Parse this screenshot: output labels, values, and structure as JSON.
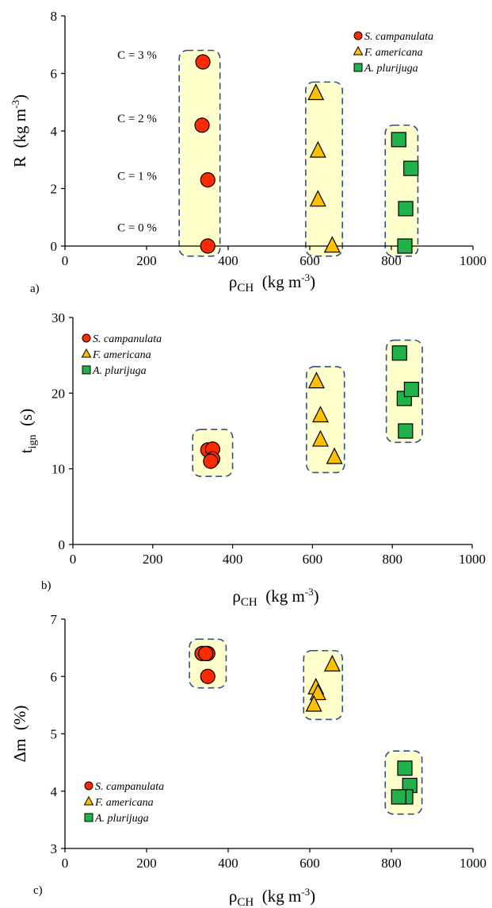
{
  "colors": {
    "S. campanulata": "#ff2a00",
    "F. americana": "#ffc000",
    "A. plurijuga": "#1fb24a",
    "box_fill": "#ffffcc",
    "box_stroke": "#2f4f8f"
  },
  "chart_data": [
    {
      "panel": "a)",
      "type": "scatter",
      "xlabel": "ρCH",
      "xlabel_base": "ρ",
      "xlabel_sub": "CH",
      "xlabel_units": "(kg m",
      "xlabel_units_sup": "-3",
      "xlabel_units_end": ")",
      "ylabel_base": "R",
      "ylabel_units": "(kg m",
      "ylabel_units_sup": "-3",
      "ylabel_units_end": ")",
      "xlim": [
        0,
        1000
      ],
      "ylim": [
        0,
        8
      ],
      "xticks": [
        "0",
        "200",
        "400",
        "600",
        "800",
        "1000"
      ],
      "yticks": [
        "0",
        "2",
        "4",
        "6",
        "8"
      ],
      "grid": false,
      "legend_position": "top-right",
      "series": [
        {
          "name": "S. campanulata",
          "marker": "circle",
          "x": [
            350,
            350,
            336,
            338
          ],
          "y": [
            0,
            2.3,
            4.2,
            6.4
          ]
        },
        {
          "name": "F. americana",
          "marker": "triangle",
          "x": [
            655,
            620,
            620,
            615
          ],
          "y": [
            0,
            1.6,
            3.3,
            5.3
          ]
        },
        {
          "name": "A. plurijuga",
          "marker": "square",
          "x": [
            833,
            835,
            848,
            818
          ],
          "y": [
            0,
            1.3,
            2.7,
            3.7
          ]
        }
      ],
      "annotations": [
        {
          "text": "C = 0 %",
          "y": 0.45
        },
        {
          "text": "C = 1 %",
          "y": 2.25
        },
        {
          "text": "C = 2 %",
          "y": 4.25
        },
        {
          "text": "C = 3 %",
          "y": 6.45
        }
      ],
      "groups": [
        {
          "series": "S. campanulata",
          "xrange": [
            280,
            380
          ],
          "yrange": [
            -0.35,
            6.8
          ]
        },
        {
          "series": "F. americana",
          "xrange": [
            590,
            680
          ],
          "yrange": [
            -0.35,
            5.7
          ]
        },
        {
          "series": "A. plurijuga",
          "xrange": [
            785,
            865
          ],
          "yrange": [
            -0.35,
            4.2
          ]
        }
      ]
    },
    {
      "panel": "b)",
      "type": "scatter",
      "xlabel": "ρCH",
      "xlabel_base": "ρ",
      "xlabel_sub": "CH",
      "xlabel_units": "(kg m",
      "xlabel_units_sup": "-3",
      "xlabel_units_end": ")",
      "ylabel_base": "t",
      "ylabel_sub": "ign",
      "ylabel_units": "(s)",
      "xlim": [
        0,
        1000
      ],
      "ylim": [
        0,
        30
      ],
      "xticks": [
        "0",
        "200",
        "400",
        "600",
        "800",
        "1000"
      ],
      "yticks": [
        "0",
        "10",
        "20",
        "30"
      ],
      "grid": false,
      "legend_position": "top-left",
      "series": [
        {
          "name": "S. campanulata",
          "marker": "circle",
          "x": [
            338,
            350,
            350,
            345
          ],
          "y": [
            12.5,
            12.6,
            11.3,
            11.0
          ]
        },
        {
          "name": "F. americana",
          "marker": "triangle",
          "x": [
            610,
            620,
            620,
            655
          ],
          "y": [
            21.5,
            17.0,
            13.8,
            11.5
          ]
        },
        {
          "name": "A. plurijuga",
          "marker": "square",
          "x": [
            818,
            830,
            848,
            833
          ],
          "y": [
            25.3,
            19.3,
            20.5,
            15.0
          ]
        }
      ],
      "groups": [
        {
          "series": "S. campanulata",
          "xrange": [
            300,
            400
          ],
          "yrange": [
            9.0,
            15.2
          ]
        },
        {
          "series": "F. americana",
          "xrange": [
            585,
            680
          ],
          "yrange": [
            9.5,
            23.5
          ]
        },
        {
          "series": "A. plurijuga",
          "xrange": [
            785,
            875
          ],
          "yrange": [
            13.5,
            27.0
          ]
        }
      ]
    },
    {
      "panel": "c)",
      "type": "scatter",
      "xlabel": "ρCH",
      "xlabel_base": "ρ",
      "xlabel_sub": "CH",
      "xlabel_units": "(kg m",
      "xlabel_units_sup": "-3",
      "xlabel_units_end": ")",
      "ylabel_base": "Δm",
      "ylabel_units": "(%)",
      "xlim": [
        0,
        1000
      ],
      "ylim": [
        3,
        7
      ],
      "xticks": [
        "0",
        "200",
        "400",
        "600",
        "800",
        "1000"
      ],
      "yticks": [
        "3",
        "4",
        "5",
        "6",
        "7"
      ],
      "grid": false,
      "legend_position": "bottom-left",
      "series": [
        {
          "name": "S. campanulata",
          "marker": "circle",
          "x": [
            336,
            350,
            345,
            350
          ],
          "y": [
            6.4,
            6.4,
            6.4,
            6.0
          ]
        },
        {
          "name": "F. americana",
          "marker": "triangle",
          "x": [
            655,
            615,
            620,
            610
          ],
          "y": [
            6.2,
            5.8,
            5.7,
            5.5
          ]
        },
        {
          "name": "A. plurijuga",
          "marker": "square",
          "x": [
            833,
            845,
            835,
            818
          ],
          "y": [
            4.4,
            4.1,
            3.9,
            3.9
          ]
        }
      ],
      "groups": [
        {
          "series": "S. campanulata",
          "xrange": [
            305,
            395
          ],
          "yrange": [
            5.8,
            6.65
          ]
        },
        {
          "series": "F. americana",
          "xrange": [
            585,
            680
          ],
          "yrange": [
            5.25,
            6.45
          ]
        },
        {
          "series": "A. plurijuga",
          "xrange": [
            785,
            875
          ],
          "yrange": [
            3.6,
            4.7
          ]
        }
      ]
    }
  ]
}
